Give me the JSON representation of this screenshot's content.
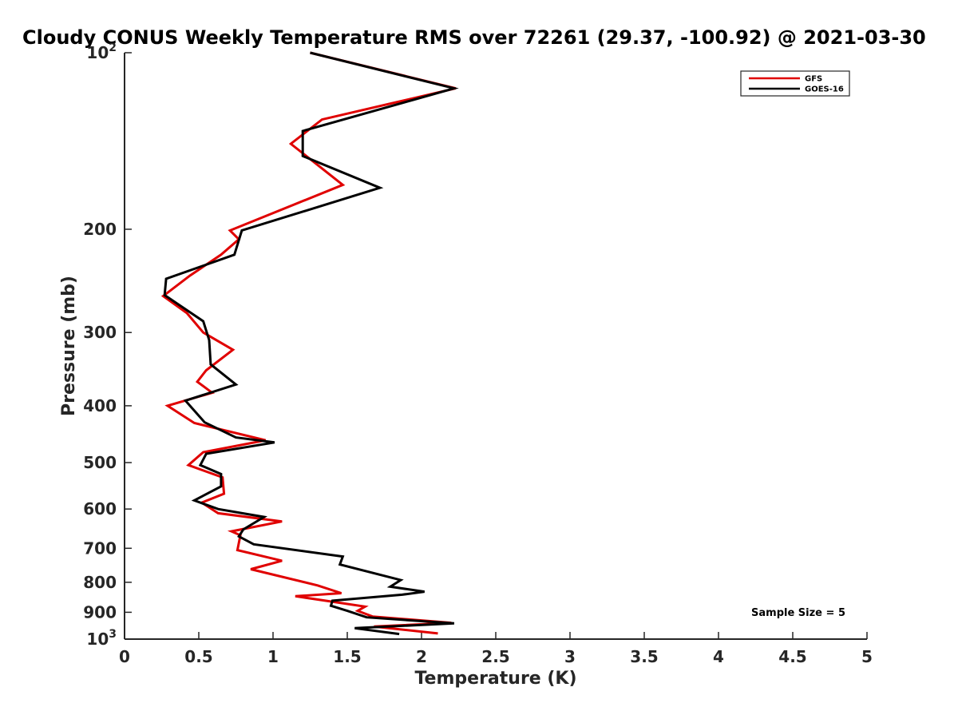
{
  "chart_data": {
    "type": "line",
    "title": "Cloudy CONUS Weekly Temperature RMS over 72261 (29.37, -100.92) @ 2021-03-30",
    "xlabel": "Temperature (K)",
    "ylabel": "Pressure (mb)",
    "xlim": [
      0,
      5
    ],
    "ylim": [
      100,
      1000
    ],
    "yscale": "log",
    "y_reversed": true,
    "x_ticks": [
      0,
      0.5,
      1,
      1.5,
      2,
      2.5,
      3,
      3.5,
      4,
      4.5,
      5
    ],
    "x_tick_labels": [
      "0",
      "0.5",
      "1",
      "1.5",
      "2",
      "2.5",
      "3",
      "3.5",
      "4",
      "4.5",
      "5"
    ],
    "y_ticks": [
      {
        "value": 100,
        "base": "10",
        "exp": "2"
      },
      {
        "value": 200,
        "label": "200"
      },
      {
        "value": 300,
        "label": "300"
      },
      {
        "value": 400,
        "label": "400"
      },
      {
        "value": 500,
        "label": "500"
      },
      {
        "value": 600,
        "label": "600"
      },
      {
        "value": 700,
        "label": "700"
      },
      {
        "value": 800,
        "label": "800"
      },
      {
        "value": 900,
        "label": "900"
      },
      {
        "value": 1000,
        "base": "10",
        "exp": "3"
      }
    ],
    "grid": false,
    "legend_position": "top-right",
    "annotation": "Sample Size = 5",
    "series": [
      {
        "name": "GFS",
        "color": "#e00000",
        "points": [
          [
            1.25,
            100
          ],
          [
            2.23,
            115
          ],
          [
            1.33,
            130
          ],
          [
            1.12,
            143
          ],
          [
            1.47,
            168
          ],
          [
            0.71,
            201
          ],
          [
            0.77,
            208
          ],
          [
            0.65,
            221
          ],
          [
            0.44,
            240
          ],
          [
            0.26,
            260
          ],
          [
            0.42,
            278
          ],
          [
            0.53,
            300
          ],
          [
            0.73,
            321
          ],
          [
            0.55,
            348
          ],
          [
            0.49,
            364
          ],
          [
            0.59,
            380
          ],
          [
            0.29,
            400
          ],
          [
            0.47,
            428
          ],
          [
            0.95,
            458
          ],
          [
            0.53,
            480
          ],
          [
            0.43,
            505
          ],
          [
            0.66,
            530
          ],
          [
            0.67,
            565
          ],
          [
            0.52,
            585
          ],
          [
            0.63,
            610
          ],
          [
            1.06,
            630
          ],
          [
            0.72,
            655
          ],
          [
            0.78,
            665
          ],
          [
            0.76,
            705
          ],
          [
            1.06,
            735
          ],
          [
            0.85,
            760
          ],
          [
            1.3,
            810
          ],
          [
            1.46,
            835
          ],
          [
            1.15,
            845
          ],
          [
            1.62,
            880
          ],
          [
            1.57,
            895
          ],
          [
            1.67,
            915
          ],
          [
            2.2,
            938
          ],
          [
            1.68,
            952
          ],
          [
            2.11,
            978
          ]
        ]
      },
      {
        "name": "GOES-16",
        "color": "#000000",
        "points": [
          [
            1.25,
            100
          ],
          [
            2.22,
            115
          ],
          [
            1.2,
            136
          ],
          [
            1.2,
            150
          ],
          [
            1.72,
            170
          ],
          [
            0.79,
            201
          ],
          [
            0.74,
            221
          ],
          [
            0.28,
            243
          ],
          [
            0.27,
            259
          ],
          [
            0.53,
            287
          ],
          [
            0.57,
            309
          ],
          [
            0.58,
            340
          ],
          [
            0.75,
            368
          ],
          [
            0.41,
            392
          ],
          [
            0.54,
            427
          ],
          [
            0.75,
            453
          ],
          [
            1.01,
            462
          ],
          [
            0.55,
            483
          ],
          [
            0.51,
            505
          ],
          [
            0.65,
            523
          ],
          [
            0.65,
            549
          ],
          [
            0.47,
            580
          ],
          [
            0.63,
            600
          ],
          [
            0.94,
            619
          ],
          [
            0.8,
            650
          ],
          [
            0.77,
            668
          ],
          [
            0.87,
            689
          ],
          [
            1.47,
            723
          ],
          [
            1.45,
            746
          ],
          [
            1.86,
            793
          ],
          [
            1.79,
            814
          ],
          [
            2.02,
            830
          ],
          [
            1.87,
            840
          ],
          [
            1.4,
            860
          ],
          [
            1.39,
            877
          ],
          [
            1.5,
            895
          ],
          [
            1.63,
            918
          ],
          [
            2.22,
            940
          ],
          [
            1.55,
            958
          ],
          [
            1.85,
            980
          ]
        ]
      }
    ]
  }
}
